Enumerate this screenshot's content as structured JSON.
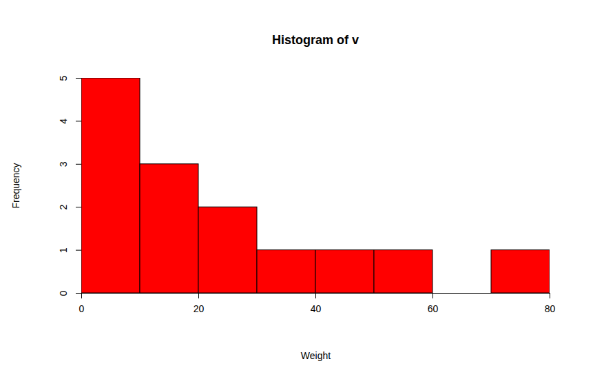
{
  "chart_data": {
    "type": "histogram",
    "title": "Histogram of v",
    "x_label": "Weight",
    "y_label": "Frequency",
    "bins": [
      0,
      10,
      20,
      30,
      40,
      50,
      60,
      70,
      80
    ],
    "values": [
      5,
      3,
      2,
      1,
      1,
      1,
      0,
      1
    ],
    "color": "#ff0000",
    "xlim": [
      0,
      80
    ],
    "ylim": [
      0,
      5
    ],
    "xticks": [
      0,
      20,
      40,
      60,
      80
    ],
    "yticks": [
      0,
      1,
      2,
      3,
      4,
      5
    ],
    "grid": false
  }
}
